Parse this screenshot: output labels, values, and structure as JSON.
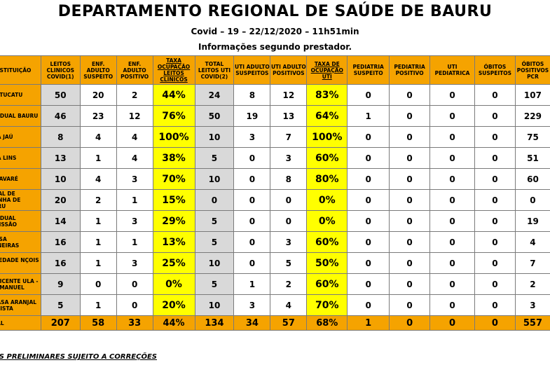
{
  "header": {
    "title": "DEPARTAMENTO REGIONAL DE SAÚDE DE BAURU",
    "subtitle": "Covid – 19 –  22/12/2020 – 11h51min",
    "info": "Informações segundo prestador."
  },
  "table": {
    "columns": [
      "INSTITUIÇÃO",
      "LEITOS CLINICOS COVID(1)",
      "ENF. ADULTO SUSPEITO",
      "ENF. ADULTO POSITIVO",
      "TAXA OCUPAÇÃO LEITOS CLINICOS",
      "TOTAL LEITOS UTI COVID(2)",
      "UTI ADULTO SUSPEITOS",
      "UTI ADULTO POSITIVOS",
      "TAXA DE OCUPAÇÃO UTI",
      "PEDIATRIA SUSPEITO",
      "PEDIATRIA POSITIVO",
      "UTI PEDIATRICA",
      "ÓBITOS SUSPEITOS",
      "ÓBITOS POSITIVOS PCR"
    ],
    "rows": [
      {
        "inst": "C BOTUCATU",
        "v": [
          "50",
          "20",
          "2",
          "44%",
          "24",
          "8",
          "12",
          "83%",
          "0",
          "0",
          "0",
          "0",
          "107"
        ]
      },
      {
        "inst": "ESTADUAL BAURU",
        "v": [
          "46",
          "23",
          "12",
          "76%",
          "50",
          "19",
          "13",
          "64%",
          "1",
          "0",
          "0",
          "0",
          "229"
        ]
      },
      {
        "inst": "CASA JAÚ",
        "v": [
          "8",
          "4",
          "4",
          "100%",
          "10",
          "3",
          "7",
          "100%",
          "0",
          "0",
          "0",
          "0",
          "75"
        ]
      },
      {
        "inst": "CASA LINS",
        "v": [
          "13",
          "1",
          "4",
          "38%",
          "5",
          "0",
          "3",
          "60%",
          "0",
          "0",
          "0",
          "0",
          "51"
        ]
      },
      {
        "inst": "ASA AVARÉ",
        "v": [
          "10",
          "4",
          "3",
          "70%",
          "10",
          "0",
          "8",
          "80%",
          "0",
          "0",
          "0",
          "0",
          "60"
        ]
      },
      {
        "inst": "SPITAL DE MPANHA DE BAURU",
        "v": [
          "20",
          "2",
          "1",
          "15%",
          "0",
          "0",
          "0",
          "0%",
          "0",
          "0",
          "0",
          "0",
          "0"
        ]
      },
      {
        "inst": "ESTADUAL ROMISSÃO",
        "v": [
          "14",
          "1",
          "3",
          "29%",
          "5",
          "0",
          "0",
          "0%",
          "0",
          "0",
          "0",
          "0",
          "19"
        ]
      },
      {
        "inst": "S.CASA DERNEIRAS",
        "v": [
          "16",
          "1",
          "1",
          "13%",
          "5",
          "0",
          "3",
          "60%",
          "0",
          "0",
          "0",
          "0",
          "4"
        ]
      },
      {
        "inst": "S. PIEDADE NÇOIS PTA.",
        "v": [
          "16",
          "1",
          "3",
          "25%",
          "10",
          "0",
          "5",
          "50%",
          "0",
          "0",
          "0",
          "0",
          "7"
        ]
      },
      {
        "inst": "ÃO VICENTE ULA - SÃO MANUEL",
        "v": [
          "9",
          "0",
          "0",
          "0%",
          "5",
          "1",
          "2",
          "60%",
          "0",
          "0",
          "0",
          "0",
          "2"
        ]
      },
      {
        "inst": "S. CASA ARANJAL PAULISTA",
        "v": [
          "5",
          "1",
          "0",
          "20%",
          "10",
          "3",
          "4",
          "70%",
          "0",
          "0",
          "0",
          "0",
          "3"
        ]
      }
    ],
    "total": {
      "inst": "TOTAL",
      "v": [
        "207",
        "58",
        "33",
        "44%",
        "134",
        "34",
        "57",
        "68%",
        "1",
        "0",
        "0",
        "0",
        "557"
      ]
    }
  },
  "footer": "DOS PRELIMINARES SUJEITO A CORREÇÕES",
  "colors": {
    "orange": "#f5a300",
    "yellow": "#ffff00",
    "gray": "#d9d9d9"
  }
}
